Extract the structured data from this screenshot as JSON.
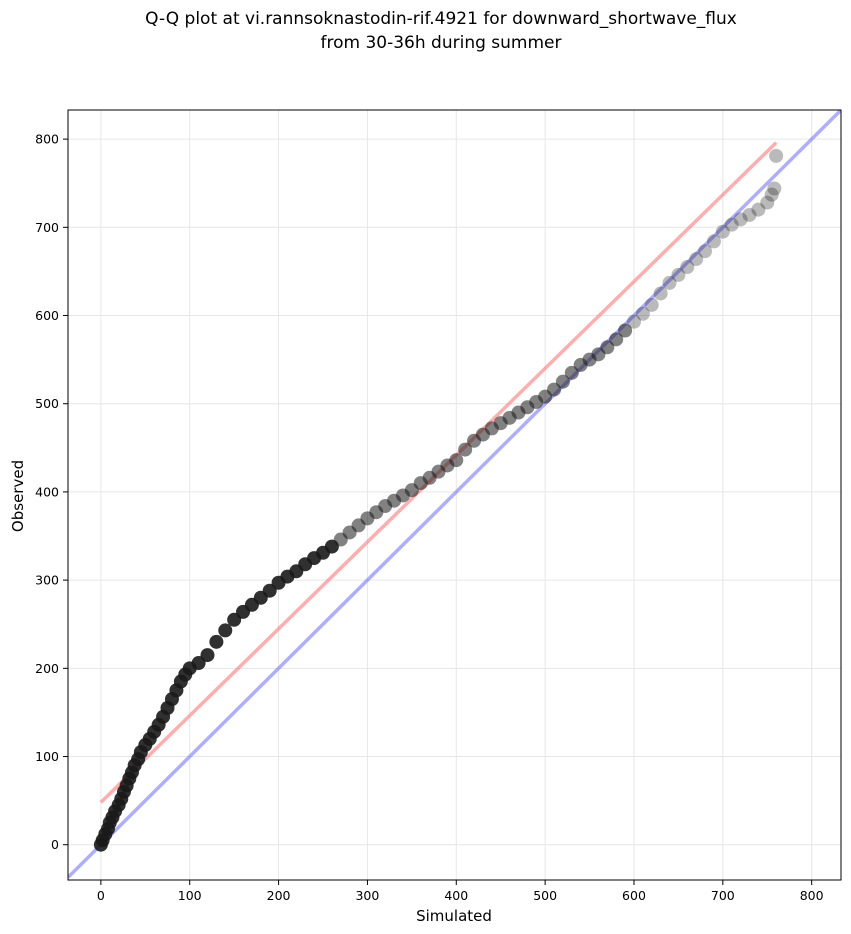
{
  "chart_data": {
    "type": "scatter",
    "title": "Q-Q plot at vi.rannsoknastodin-rif.4921 for downward_shortwave_flux",
    "subtitle": "from 30-36h during summer",
    "xlabel": "Simulated",
    "ylabel": "Observed",
    "xlim": [
      -37,
      833
    ],
    "ylim": [
      -40,
      833
    ],
    "xticks": [
      0,
      100,
      200,
      300,
      400,
      500,
      600,
      700,
      800
    ],
    "yticks": [
      0,
      100,
      200,
      300,
      400,
      500,
      600,
      700,
      800
    ],
    "grid": true,
    "colors": {
      "points": "#1a1a1a",
      "fit_line": "#ff6b6b",
      "identity_line": "#6b6bff",
      "grid": "#e6e6e6"
    },
    "series": [
      {
        "type": "scatter",
        "points": [
          [
            0,
            0
          ],
          [
            2,
            5
          ],
          [
            5,
            12
          ],
          [
            8,
            18
          ],
          [
            10,
            25
          ],
          [
            13,
            31
          ],
          [
            16,
            38
          ],
          [
            20,
            45
          ],
          [
            23,
            52
          ],
          [
            26,
            60
          ],
          [
            29,
            67
          ],
          [
            32,
            75
          ],
          [
            35,
            82
          ],
          [
            38,
            90
          ],
          [
            42,
            97
          ],
          [
            45,
            105
          ],
          [
            50,
            113
          ],
          [
            55,
            120
          ],
          [
            60,
            128
          ],
          [
            65,
            136
          ],
          [
            70,
            145
          ],
          [
            75,
            155
          ],
          [
            80,
            165
          ],
          [
            85,
            175
          ],
          [
            90,
            185
          ],
          [
            95,
            193
          ],
          [
            100,
            200
          ],
          [
            110,
            206
          ],
          [
            120,
            215
          ],
          [
            130,
            230
          ],
          [
            140,
            243
          ],
          [
            150,
            255
          ],
          [
            160,
            264
          ],
          [
            170,
            272
          ],
          [
            180,
            280
          ],
          [
            190,
            288
          ],
          [
            200,
            297
          ],
          [
            210,
            304
          ],
          [
            220,
            310
          ],
          [
            230,
            318
          ],
          [
            240,
            325
          ],
          [
            250,
            331
          ],
          [
            260,
            338
          ],
          [
            270,
            346
          ],
          [
            280,
            354
          ],
          [
            290,
            362
          ],
          [
            300,
            370
          ],
          [
            310,
            377
          ],
          [
            320,
            384
          ],
          [
            330,
            390
          ],
          [
            340,
            396
          ],
          [
            350,
            402
          ],
          [
            360,
            410
          ],
          [
            370,
            416
          ],
          [
            380,
            423
          ],
          [
            390,
            430
          ],
          [
            400,
            436
          ],
          [
            410,
            448
          ],
          [
            420,
            458
          ],
          [
            430,
            465
          ],
          [
            440,
            472
          ],
          [
            450,
            478
          ],
          [
            460,
            484
          ],
          [
            470,
            490
          ],
          [
            480,
            496
          ],
          [
            490,
            502
          ],
          [
            500,
            508
          ],
          [
            510,
            516
          ],
          [
            520,
            525
          ],
          [
            530,
            535
          ],
          [
            540,
            544
          ],
          [
            550,
            550
          ],
          [
            560,
            556
          ],
          [
            570,
            564
          ],
          [
            580,
            573
          ],
          [
            590,
            583
          ],
          [
            600,
            593
          ],
          [
            610,
            602
          ],
          [
            620,
            612
          ],
          [
            630,
            625
          ],
          [
            640,
            637
          ],
          [
            650,
            646
          ],
          [
            660,
            655
          ],
          [
            670,
            664
          ],
          [
            680,
            673
          ],
          [
            690,
            684
          ],
          [
            700,
            695
          ],
          [
            710,
            703
          ],
          [
            720,
            709
          ],
          [
            730,
            714
          ],
          [
            740,
            720
          ],
          [
            750,
            728
          ],
          [
            755,
            737
          ],
          [
            758,
            744
          ],
          [
            760,
            781
          ]
        ]
      },
      {
        "type": "line",
        "points": [
          [
            0,
            48
          ],
          [
            760,
            796
          ]
        ]
      },
      {
        "type": "line",
        "points": [
          [
            -37,
            -37
          ],
          [
            833,
            833
          ]
        ]
      }
    ]
  }
}
